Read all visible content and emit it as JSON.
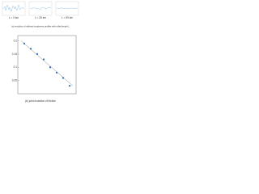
{
  "panel_a": {
    "labels": [
      "L = 0 km",
      "L = 25 km",
      "L = 50 km"
    ],
    "caption": "(a) evolution of railhead roughness profiles with rolled length L"
  },
  "chart_data": {
    "type": "scatter",
    "caption": "(b) joint evolution of friction",
    "x": [
      1,
      2,
      3,
      4,
      5,
      6,
      7,
      8
    ],
    "y": [
      0.19,
      0.17,
      0.15,
      0.13,
      0.1,
      0.08,
      0.06,
      0.03
    ],
    "color": "#2a6db5",
    "fit": {
      "x": [
        0.5,
        8.5
      ],
      "y": [
        0.2,
        0.03
      ]
    },
    "xlim": [
      0,
      9
    ],
    "ylim": [
      0,
      0.22
    ],
    "yticks": [
      0.05,
      0.1,
      0.15,
      0.2
    ]
  }
}
